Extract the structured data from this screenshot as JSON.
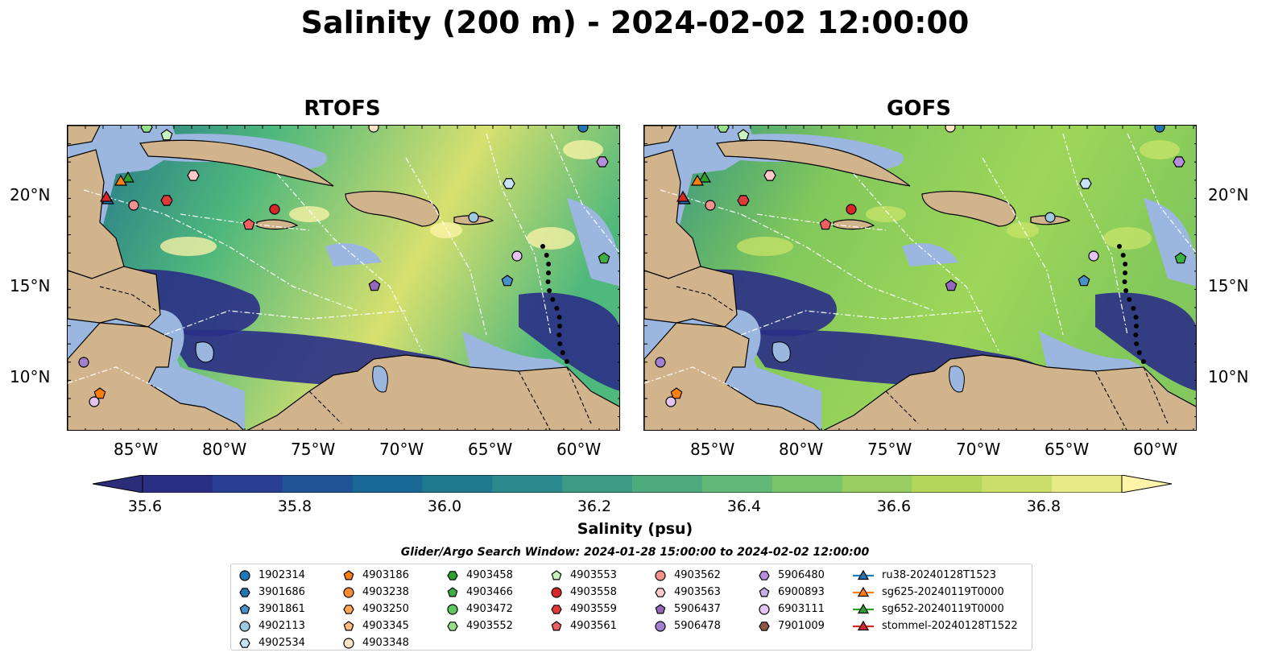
{
  "title": "Salinity (200 m) - 2024-02-02 12:00:00",
  "panels": [
    {
      "title": "RTOFS",
      "palette": {
        "deep": "#2a2f86",
        "mid": "#1f6e8c",
        "high": "#4fb87c",
        "top": "#d7e06f",
        "peak": "#fff4a8"
      }
    },
    {
      "title": "GOFS",
      "palette": {
        "deep": "#2a2f86",
        "mid": "#2a8f86",
        "high": "#82c85c",
        "top": "#9ed659",
        "peak": "#c9e36a"
      }
    }
  ],
  "map": {
    "lon_ticks": [
      "85°W",
      "80°W",
      "75°W",
      "70°W",
      "65°W",
      "60°W"
    ],
    "lat_ticks": [
      "20°N",
      "15°N",
      "10°N"
    ],
    "land_color": "#d2b48c",
    "shelf_color": "#9bb7e0"
  },
  "colorbar": {
    "label": "Salinity (psu)",
    "ticks": [
      "35.6",
      "35.8",
      "36.0",
      "36.2",
      "36.4",
      "36.6",
      "36.8"
    ],
    "colors": [
      "#2b2c7a",
      "#2a2f86",
      "#283f94",
      "#1f5497",
      "#1a6896",
      "#1f7a91",
      "#2a8a8c",
      "#3b9b86",
      "#4fab7e",
      "#62b877",
      "#7ac46a",
      "#97cd61",
      "#b3d65b",
      "#cbde6c",
      "#e7ea85",
      "#fff4a8"
    ]
  },
  "search_window": "Glider/Argo Search Window: 2024-01-28 15:00:00 to 2024-02-02 12:00:00",
  "legend": [
    {
      "label": "1902314",
      "marker": "circle",
      "color": "#1f77b4"
    },
    {
      "label": "3901686",
      "marker": "hexagon",
      "color": "#1f77b4"
    },
    {
      "label": "3901861",
      "marker": "pentagon",
      "color": "#4a90c8"
    },
    {
      "label": "4902113",
      "marker": "circle",
      "color": "#9ecae1"
    },
    {
      "label": "4902534",
      "marker": "hexagon",
      "color": "#c6e4f5"
    },
    {
      "label": "4903186",
      "marker": "pentagon",
      "color": "#ff7f0e"
    },
    {
      "label": "4903238",
      "marker": "circle",
      "color": "#ff8c2e"
    },
    {
      "label": "4903250",
      "marker": "hexagon",
      "color": "#ffa552"
    },
    {
      "label": "4903345",
      "marker": "pentagon",
      "color": "#ffbb78"
    },
    {
      "label": "4903348",
      "marker": "circle",
      "color": "#ffe4c4"
    },
    {
      "label": "4903458",
      "marker": "hexagon",
      "color": "#2ca02c"
    },
    {
      "label": "4903466",
      "marker": "pentagon",
      "color": "#3cb043"
    },
    {
      "label": "4903472",
      "marker": "circle",
      "color": "#5cc85c"
    },
    {
      "label": "4903552",
      "marker": "hexagon",
      "color": "#98df8a"
    },
    {
      "label": "4903553",
      "marker": "pentagon",
      "color": "#c7f2c0"
    },
    {
      "label": "4903558",
      "marker": "circle",
      "color": "#d62728"
    },
    {
      "label": "4903559",
      "marker": "hexagon",
      "color": "#e0393a"
    },
    {
      "label": "4903561",
      "marker": "pentagon",
      "color": "#f06060"
    },
    {
      "label": "4903562",
      "marker": "circle",
      "color": "#f4918e"
    },
    {
      "label": "4903563",
      "marker": "hexagon",
      "color": "#ffc9c9"
    },
    {
      "label": "5906437",
      "marker": "pentagon",
      "color": "#9467bd"
    },
    {
      "label": "5906478",
      "marker": "circle",
      "color": "#a37fcf"
    },
    {
      "label": "5906480",
      "marker": "hexagon",
      "color": "#b58fdb"
    },
    {
      "label": "6900893",
      "marker": "pentagon",
      "color": "#c5b0e6"
    },
    {
      "label": "6903111",
      "marker": "circle",
      "color": "#e3c3f0"
    },
    {
      "label": "7901009",
      "marker": "hexagon",
      "color": "#8c564b"
    },
    {
      "label": "ru38-20240128T1523",
      "marker": "triangle-line",
      "color": "#1f77b4"
    },
    {
      "label": "sg625-20240119T0000",
      "marker": "triangle-line",
      "color": "#ff7f0e"
    },
    {
      "label": "sg652-20240119T0000",
      "marker": "triangle-line",
      "color": "#2ca02c"
    },
    {
      "label": "stommel-20240128T1522",
      "marker": "triangle-line",
      "color": "#d62728"
    }
  ]
}
